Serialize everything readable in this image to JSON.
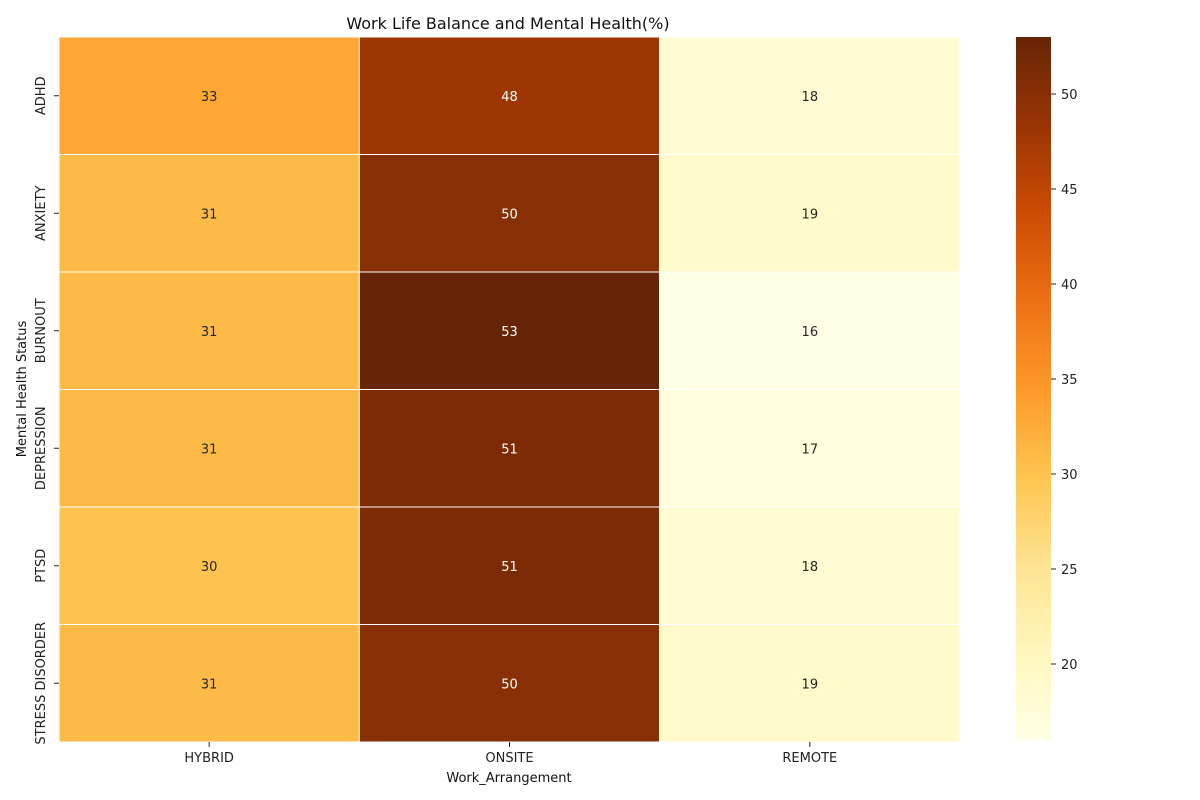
{
  "chart_data": {
    "type": "heatmap",
    "title": "Work Life Balance and Mental Health(%)",
    "xlabel": "Work_Arrangement",
    "ylabel": "Mental Health Status",
    "x_categories": [
      "HYBRID",
      "ONSITE",
      "REMOTE"
    ],
    "y_categories": [
      "ADHD",
      "ANXIETY",
      "BURNOUT",
      "DEPRESSION",
      "PTSD",
      "STRESS DISORDER"
    ],
    "values": [
      [
        33,
        48,
        18
      ],
      [
        31,
        50,
        19
      ],
      [
        31,
        53,
        16
      ],
      [
        31,
        51,
        17
      ],
      [
        30,
        51,
        18
      ],
      [
        31,
        50,
        19
      ]
    ],
    "colormap": "YlOrBr",
    "color_range": [
      16,
      53
    ],
    "colorbar_ticks": [
      20,
      25,
      30,
      35,
      40,
      45,
      50
    ],
    "cell_border_color": "#ffffff"
  }
}
